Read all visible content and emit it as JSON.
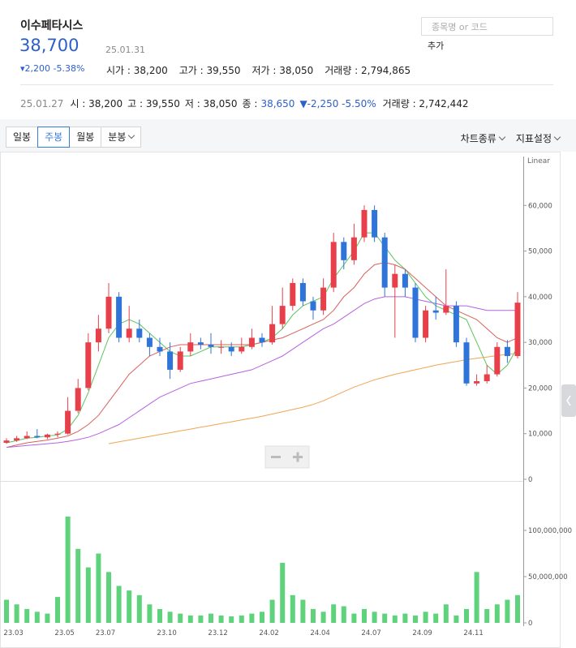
{
  "header": {
    "name": "이수페타시스",
    "price": "38,700",
    "date": "25.01.31",
    "change": "▾2,200 -5.38%",
    "stats": [
      "시가 : 38,200",
      "고가 : 39,550",
      "저가 : 38,050",
      "거래량 : 2,794,865"
    ]
  },
  "search": {
    "placeholder": "종목명 or 코드",
    "button": "추가"
  },
  "info_bar": {
    "date": "25.01.27",
    "items": [
      "시 : 38,200",
      "고 : 39,550",
      "저 : 38,050"
    ],
    "close_label": "종 :",
    "close_value": "38,650",
    "change": "▼-2,250 -5.50%",
    "volume": "거래량 : 2,742,442"
  },
  "toolbar": {
    "periods": [
      "일봉",
      "주봉",
      "월봉",
      "분봉"
    ],
    "selected": 1,
    "dropdown": [
      3
    ],
    "right": [
      "차트종류",
      "지표설정"
    ]
  },
  "chart_data": {
    "type": "candlestick",
    "scale_label": "Linear",
    "categories": [
      null,
      "23.03",
      null,
      null,
      null,
      null,
      "23.05",
      null,
      null,
      null,
      "23.07",
      null,
      null,
      null,
      null,
      null,
      "23.10",
      null,
      null,
      null,
      null,
      "23.12",
      null,
      null,
      null,
      null,
      "24.02",
      null,
      null,
      null,
      null,
      "24.04",
      null,
      null,
      null,
      null,
      "24.07",
      null,
      null,
      null,
      null,
      "24.09",
      null,
      null,
      null,
      null,
      "24.11",
      null,
      null,
      null,
      null
    ],
    "open": [
      8000,
      8500,
      9000,
      9500,
      9200,
      9800,
      10000,
      15000,
      20000,
      30000,
      33000,
      40000,
      31000,
      33000,
      31000,
      29000,
      28000,
      24000,
      28000,
      30000,
      29500,
      29000,
      29000,
      28000,
      29000,
      31000,
      30000,
      34000,
      38000,
      43000,
      39000,
      37000,
      42000,
      52000,
      48000,
      53000,
      59000,
      53000,
      42000,
      45000,
      42000,
      31000,
      37000,
      36500,
      38000,
      30000,
      21000,
      21500,
      23000,
      29000,
      27000
    ],
    "high": [
      9000,
      9500,
      10500,
      11000,
      10000,
      10500,
      18000,
      22000,
      32000,
      36000,
      43000,
      41000,
      38000,
      35000,
      32000,
      31000,
      30000,
      29000,
      32000,
      31000,
      32000,
      30500,
      30000,
      31000,
      33000,
      32000,
      38000,
      42000,
      44000,
      44000,
      40000,
      44000,
      54000,
      53000,
      56000,
      60000,
      60000,
      54000,
      47000,
      46000,
      43000,
      38000,
      40000,
      46000,
      39000,
      31000,
      23000,
      25000,
      30000,
      30500,
      41000
    ],
    "low": [
      7800,
      8200,
      8800,
      9000,
      8800,
      9200,
      9800,
      14500,
      19500,
      28000,
      32000,
      30000,
      30000,
      30000,
      27000,
      27000,
      22000,
      23500,
      27000,
      28500,
      27500,
      27500,
      27000,
      27500,
      28500,
      29000,
      29500,
      33000,
      37000,
      38000,
      35000,
      36000,
      41000,
      46000,
      47000,
      52000,
      52000,
      40000,
      31000,
      40000,
      30000,
      30000,
      35000,
      36000,
      29000,
      20500,
      20500,
      21000,
      22500,
      25500,
      26500
    ],
    "close": [
      8500,
      9000,
      9500,
      9200,
      9800,
      10000,
      15000,
      20000,
      30000,
      33000,
      40000,
      31000,
      33000,
      31000,
      29000,
      28000,
      24000,
      28000,
      30000,
      29500,
      29000,
      29000,
      28000,
      29000,
      31000,
      30000,
      34000,
      38000,
      43000,
      39000,
      37000,
      42000,
      52000,
      48000,
      53000,
      59000,
      53000,
      42000,
      45000,
      42000,
      31000,
      37000,
      36500,
      38000,
      30000,
      21000,
      21500,
      23000,
      29000,
      27000,
      38700
    ],
    "up_color": "#e8404a",
    "down_color": "#2f74d8",
    "ylim": [
      0,
      70000
    ],
    "yticks": [
      0,
      {
        "value": 10000,
        "label": "10,000"
      },
      {
        "value": 20000,
        "label": "20,000"
      },
      {
        "value": 30000,
        "label": "30,000"
      },
      {
        "value": 40000,
        "label": "40,000"
      },
      {
        "value": 50000,
        "label": "50,000"
      },
      {
        "value": 60000,
        "label": "60,000"
      }
    ],
    "ma_lines": [
      {
        "color": "#5cc460",
        "values": [
          8000,
          8500,
          9000,
          9200,
          9500,
          9700,
          11000,
          14000,
          19000,
          25000,
          31000,
          34000,
          35000,
          34000,
          32000,
          30000,
          28000,
          27000,
          27000,
          28000,
          29000,
          29000,
          29000,
          29000,
          29500,
          30000,
          31000,
          33000,
          36000,
          38000,
          39000,
          40000,
          44000,
          47000,
          50000,
          54000,
          54000,
          51000,
          48000,
          46000,
          43000,
          40000,
          38000,
          37000,
          36000,
          35000,
          30000,
          25000,
          23000,
          25000,
          29000
        ]
      },
      {
        "color": "#d9605a",
        "values": [
          7000,
          7500,
          8000,
          8300,
          8600,
          9000,
          9500,
          10500,
          12000,
          14000,
          17000,
          20000,
          23000,
          25000,
          27000,
          28000,
          29000,
          29500,
          29500,
          29500,
          29500,
          29500,
          29500,
          29500,
          29500,
          30000,
          30500,
          31000,
          32000,
          33000,
          34000,
          35000,
          37000,
          40000,
          42000,
          45000,
          47000,
          47500,
          47000,
          46000,
          44000,
          42000,
          40000,
          38000,
          37000,
          36000,
          35000,
          33000,
          31000,
          30000,
          31000
        ]
      },
      {
        "color": "#b463e0",
        "values": [
          7000,
          7200,
          7400,
          7600,
          7800,
          8000,
          8300,
          8700,
          9200,
          10000,
          11000,
          12000,
          13500,
          15000,
          16500,
          18000,
          19000,
          20000,
          21000,
          21500,
          22000,
          22500,
          23000,
          23500,
          24000,
          25000,
          26000,
          27000,
          28500,
          30000,
          31500,
          33000,
          34000,
          35500,
          37000,
          38500,
          39500,
          40000,
          40000,
          40000,
          39500,
          39000,
          38500,
          38000,
          38000,
          38000,
          37500,
          37000,
          37000,
          37000,
          37000
        ]
      },
      {
        "color": "#f0a454",
        "values": [
          null,
          null,
          null,
          null,
          null,
          null,
          null,
          null,
          null,
          null,
          7800,
          8200,
          8600,
          9000,
          9400,
          9800,
          10200,
          10600,
          11000,
          11400,
          11800,
          12200,
          12600,
          13000,
          13400,
          13800,
          14300,
          14800,
          15300,
          15800,
          16400,
          17200,
          18200,
          19200,
          20200,
          21000,
          21800,
          22400,
          23000,
          23500,
          24000,
          24500,
          25000,
          25400,
          25800,
          26200,
          26500,
          26800,
          27100,
          27400,
          27600
        ]
      }
    ],
    "volume": {
      "color": "#5fd37c",
      "values": [
        25000000,
        20000000,
        15000000,
        12000000,
        10000000,
        28000000,
        115000000,
        80000000,
        60000000,
        75000000,
        55000000,
        40000000,
        35000000,
        30000000,
        20000000,
        15000000,
        12000000,
        10000000,
        8000000,
        8000000,
        10000000,
        8000000,
        7000000,
        8000000,
        10000000,
        12000000,
        25000000,
        65000000,
        30000000,
        25000000,
        15000000,
        12000000,
        20000000,
        18000000,
        10000000,
        15000000,
        12000000,
        10000000,
        8000000,
        10000000,
        8000000,
        12000000,
        10000000,
        20000000,
        8000000,
        15000000,
        55000000,
        15000000,
        20000000,
        25000000,
        30000000
      ],
      "ylim": [
        0,
        150000000
      ],
      "yticks": [
        0,
        {
          "value": 50000000,
          "label": "50,000,000"
        },
        {
          "value": 100000000,
          "label": "100,000,000"
        }
      ]
    }
  }
}
